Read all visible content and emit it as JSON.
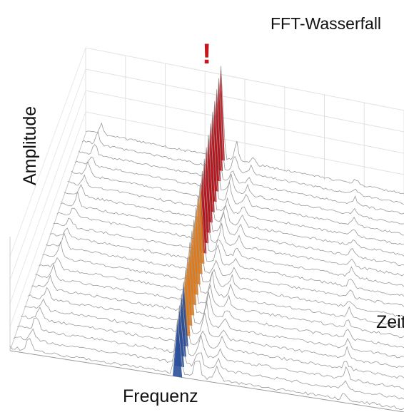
{
  "chart_data": {
    "type": "waterfall-3d",
    "title": "FFT-Wasserfall",
    "xlabel": "Frequenz",
    "ylabel": "Amplitude",
    "zlabel": "Zeit",
    "annotation": "!",
    "grid": true,
    "frequency_bins": 40,
    "time_slices": 22,
    "peaks": [
      {
        "frequency_bin": 17,
        "amplitude_start": 0.45,
        "amplitude_end": 1.0,
        "note": "growing dominant peak, marked by annotation"
      },
      {
        "frequency_bin": 19,
        "amplitude": 0.18
      },
      {
        "frequency_bin": 21,
        "amplitude": 0.1
      },
      {
        "frequency_bin": 34,
        "amplitude": 0.08
      },
      {
        "frequency_bin": 2,
        "amplitude": 0.12
      }
    ],
    "colors": {
      "low": "#2b4f9a",
      "mid": "#e07a18",
      "high": "#b8141c",
      "noise": "#9a9a9a"
    }
  }
}
